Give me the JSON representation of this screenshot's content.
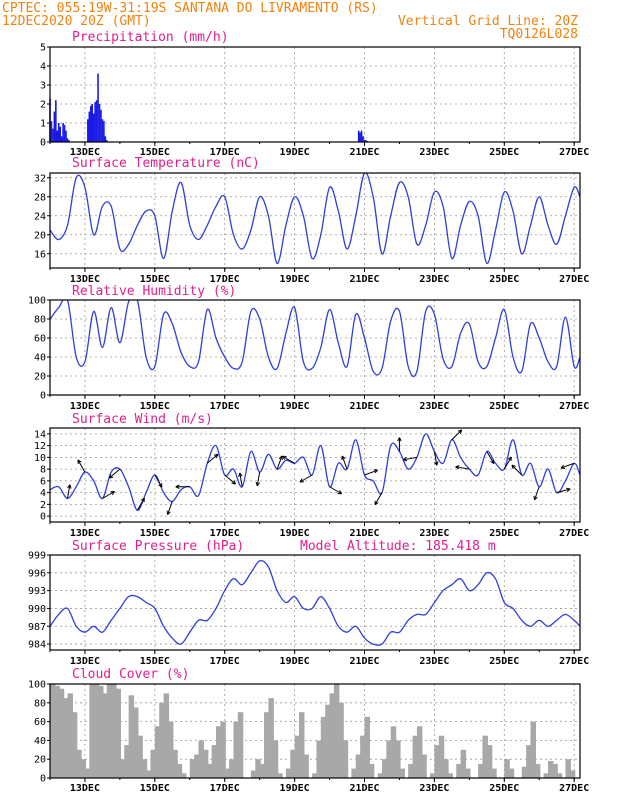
{
  "header": {
    "line1_left": "CPTEC:   055:19W-31:19S  SANTANA DO LIVRAMENTO (RS)",
    "line2_left": "12DEC2020 20Z (GMT)",
    "line2_right": "Vertical Grid Line: 20Z",
    "line3_right": "TQ0126L028"
  },
  "colors": {
    "line": "#2f3fd8",
    "bar": "#1a1ae6",
    "cloud": "#a8a8a8",
    "title": "#e0208c",
    "header": "#f0820f"
  },
  "x_axis": {
    "ticks": [
      "13DEC",
      "15DEC",
      "17DEC",
      "19DEC",
      "21DEC",
      "23DEC",
      "25DEC",
      "27DEC"
    ],
    "tick_hours": [
      24,
      72,
      120,
      168,
      216,
      264,
      312,
      360
    ],
    "range_hours": [
      0,
      364
    ]
  },
  "chart_data": [
    {
      "id": "precip",
      "type": "bar",
      "title": "Precipitation (mm/h)",
      "ylim": [
        0,
        5
      ],
      "yticks": [
        0,
        1,
        2,
        3,
        4,
        5
      ],
      "x_hours": [
        0,
        1,
        2,
        3,
        4,
        5,
        6,
        7,
        8,
        9,
        10,
        11,
        12,
        13,
        14,
        15,
        16,
        17,
        18,
        19,
        20,
        21,
        22,
        23,
        24,
        25,
        26,
        27,
        28,
        29,
        30,
        31,
        32,
        33,
        34,
        35,
        36,
        37,
        38,
        39,
        40,
        41,
        42,
        43,
        44,
        45,
        46,
        47,
        212,
        213,
        214,
        215,
        216,
        217,
        218
      ],
      "values": [
        2.3,
        1.1,
        0.7,
        1.6,
        2.2,
        0.6,
        1.0,
        0.8,
        0.3,
        1.0,
        0.9,
        0.6,
        0.2,
        0.1,
        0,
        0,
        0,
        0,
        0,
        0,
        0,
        0,
        0,
        0,
        0,
        0,
        1.2,
        1.6,
        1.9,
        2.0,
        1.5,
        2.1,
        2.2,
        3.6,
        2.0,
        1.7,
        1.2,
        1.1,
        0.3,
        0.1,
        0,
        0,
        0,
        0,
        0,
        0,
        0,
        0,
        0.6,
        0.5,
        0.6,
        0.3,
        0.1,
        0.1,
        0.05
      ]
    },
    {
      "id": "temp",
      "type": "line",
      "title": "Surface Temperature (nC)",
      "ylim": [
        13,
        33
      ],
      "yticks": [
        16,
        20,
        24,
        28,
        32
      ],
      "x_hours": [
        0,
        6,
        12,
        18,
        24,
        30,
        36,
        42,
        48,
        54,
        60,
        66,
        72,
        78,
        84,
        90,
        96,
        102,
        108,
        114,
        120,
        126,
        132,
        138,
        144,
        150,
        156,
        162,
        168,
        174,
        180,
        186,
        192,
        198,
        204,
        210,
        216,
        222,
        228,
        234,
        240,
        246,
        252,
        258,
        264,
        270,
        276,
        282,
        288,
        294,
        300,
        306,
        312,
        318,
        324,
        330,
        336,
        342,
        348,
        354,
        360,
        364
      ],
      "values": [
        21,
        19,
        22,
        32,
        30,
        20,
        26,
        26,
        17,
        18,
        22,
        25,
        24,
        15,
        25,
        31,
        22,
        19,
        22,
        26,
        28,
        20,
        17,
        21,
        28,
        24,
        14,
        22,
        28,
        24,
        15,
        20,
        30,
        25,
        17,
        24,
        33,
        28,
        16,
        24,
        31,
        28,
        18,
        22,
        29,
        26,
        15,
        22,
        27,
        24,
        14,
        21,
        29,
        25,
        16,
        22,
        28,
        22,
        18,
        24,
        30,
        28
      ]
    },
    {
      "id": "rh",
      "type": "line",
      "title": "Relative Humidity (%)",
      "ylim": [
        0,
        100
      ],
      "yticks": [
        0,
        20,
        40,
        60,
        80,
        100
      ],
      "x_hours": [
        0,
        6,
        12,
        18,
        24,
        30,
        36,
        42,
        48,
        54,
        60,
        66,
        72,
        78,
        84,
        90,
        96,
        102,
        108,
        114,
        120,
        126,
        132,
        138,
        144,
        150,
        156,
        162,
        168,
        174,
        180,
        186,
        192,
        198,
        204,
        210,
        216,
        222,
        228,
        234,
        240,
        246,
        252,
        258,
        264,
        270,
        276,
        282,
        288,
        294,
        300,
        306,
        312,
        318,
        324,
        330,
        336,
        342,
        348,
        354,
        360,
        364
      ],
      "values": [
        80,
        92,
        100,
        40,
        35,
        88,
        50,
        92,
        55,
        98,
        100,
        40,
        30,
        85,
        75,
        45,
        30,
        35,
        90,
        60,
        40,
        28,
        35,
        88,
        80,
        40,
        28,
        65,
        92,
        35,
        28,
        50,
        90,
        55,
        30,
        85,
        60,
        25,
        28,
        78,
        88,
        30,
        25,
        88,
        85,
        38,
        30,
        65,
        75,
        35,
        30,
        60,
        90,
        40,
        25,
        75,
        60,
        35,
        30,
        82,
        30,
        40
      ]
    },
    {
      "id": "wind",
      "type": "line",
      "title": "Surface Wind (m/s)",
      "ylim": [
        -1,
        15
      ],
      "yticks": [
        0,
        2,
        4,
        6,
        8,
        10,
        12,
        14
      ],
      "x_hours": [
        0,
        6,
        12,
        18,
        24,
        30,
        36,
        42,
        48,
        54,
        60,
        66,
        72,
        78,
        84,
        90,
        96,
        102,
        108,
        114,
        120,
        126,
        132,
        138,
        144,
        150,
        156,
        162,
        168,
        174,
        180,
        186,
        192,
        198,
        204,
        210,
        216,
        222,
        228,
        234,
        240,
        246,
        252,
        258,
        264,
        270,
        276,
        282,
        288,
        294,
        300,
        306,
        312,
        318,
        324,
        330,
        336,
        342,
        348,
        354,
        360,
        364
      ],
      "values": [
        4.5,
        5.0,
        3.0,
        5.0,
        7.5,
        6.0,
        3.0,
        7.5,
        8.0,
        5.0,
        1.0,
        4.0,
        7.0,
        4.0,
        2.5,
        4.5,
        5.0,
        3.5,
        9.0,
        12.0,
        7.0,
        8.0,
        5.0,
        11.0,
        7.5,
        10.5,
        8.0,
        9.5,
        9.0,
        10.0,
        7.0,
        12.0,
        5.0,
        9.0,
        8.0,
        13.0,
        7.0,
        6.0,
        4.0,
        12.0,
        11.0,
        8.0,
        10.0,
        14.0,
        11.0,
        9.0,
        13.0,
        10.0,
        8.0,
        7.0,
        11.0,
        9.0,
        8.0,
        13.0,
        7.0,
        9.0,
        5.0,
        8.0,
        4.0,
        6.0,
        9.0,
        7.0
      ]
    },
    {
      "id": "pressure",
      "type": "line",
      "title": "Surface Pressure (hPa)",
      "subtitle": "Model Altitude: 185.418 m",
      "ylim": [
        983,
        999
      ],
      "yticks": [
        984,
        987,
        990,
        993,
        996,
        999
      ],
      "ytick_labels": [
        "984",
        "987",
        "990",
        "993",
        "996",
        "999"
      ],
      "x_hours": [
        0,
        6,
        12,
        18,
        24,
        30,
        36,
        42,
        48,
        54,
        60,
        66,
        72,
        78,
        84,
        90,
        96,
        102,
        108,
        114,
        120,
        126,
        132,
        138,
        144,
        150,
        156,
        162,
        168,
        174,
        180,
        186,
        192,
        198,
        204,
        210,
        216,
        222,
        228,
        234,
        240,
        246,
        252,
        258,
        264,
        270,
        276,
        282,
        288,
        294,
        300,
        306,
        312,
        318,
        324,
        330,
        336,
        342,
        348,
        354,
        360,
        364
      ],
      "values": [
        987,
        989,
        990,
        987,
        986,
        987,
        986,
        988,
        990,
        992,
        992,
        991,
        990,
        987,
        985,
        984,
        986,
        988,
        988,
        990,
        993,
        995,
        994,
        996,
        998,
        997,
        993,
        991,
        992,
        990,
        990,
        992,
        990,
        987,
        986,
        987,
        985,
        984,
        984,
        986,
        986,
        988,
        989,
        989,
        991,
        993,
        994,
        995,
        993,
        994,
        996,
        995,
        991,
        990,
        988,
        987,
        988,
        987,
        988,
        989,
        988,
        987
      ]
    },
    {
      "id": "cloud",
      "type": "bar",
      "title": "Cloud Cover (%)",
      "ylim": [
        0,
        100
      ],
      "yticks": [
        0,
        20,
        40,
        60,
        80,
        100
      ],
      "x_hours": [
        0,
        3,
        6,
        9,
        12,
        15,
        18,
        21,
        24,
        27,
        30,
        33,
        36,
        39,
        42,
        45,
        48,
        51,
        54,
        57,
        60,
        63,
        66,
        69,
        72,
        75,
        78,
        81,
        84,
        87,
        90,
        93,
        96,
        99,
        102,
        105,
        108,
        111,
        114,
        117,
        120,
        123,
        126,
        129,
        132,
        135,
        138,
        141,
        144,
        147,
        150,
        153,
        156,
        159,
        162,
        165,
        168,
        171,
        174,
        177,
        180,
        183,
        186,
        189,
        192,
        195,
        198,
        201,
        204,
        207,
        210,
        213,
        216,
        219,
        222,
        225,
        228,
        231,
        234,
        237,
        240,
        243,
        246,
        249,
        252,
        255,
        258,
        261,
        264,
        267,
        270,
        273,
        276,
        279,
        282,
        285,
        288,
        291,
        294,
        297,
        300,
        303,
        306,
        309,
        312,
        315,
        318,
        321,
        324,
        327,
        330,
        333,
        336,
        339,
        342,
        345,
        348,
        351,
        354,
        357,
        360
      ],
      "values": [
        100,
        98,
        95,
        85,
        90,
        70,
        30,
        20,
        10,
        100,
        100,
        98,
        90,
        100,
        100,
        95,
        20,
        35,
        88,
        75,
        45,
        20,
        8,
        30,
        55,
        80,
        90,
        60,
        30,
        15,
        5,
        0,
        20,
        25,
        40,
        30,
        15,
        35,
        55,
        60,
        10,
        20,
        60,
        70,
        0,
        0,
        8,
        20,
        15,
        70,
        85,
        40,
        5,
        0,
        10,
        30,
        45,
        70,
        25,
        0,
        5,
        40,
        65,
        78,
        90,
        100,
        80,
        40,
        0,
        10,
        25,
        45,
        65,
        15,
        0,
        5,
        20,
        40,
        55,
        40,
        10,
        0,
        15,
        45,
        55,
        25,
        0,
        5,
        35,
        45,
        20,
        5,
        0,
        15,
        30,
        10,
        0,
        0,
        15,
        45,
        35,
        10,
        0,
        0,
        20,
        10,
        0,
        0,
        12,
        35,
        60,
        15,
        0,
        5,
        18,
        15,
        5,
        0,
        20,
        8,
        0
      ]
    }
  ]
}
